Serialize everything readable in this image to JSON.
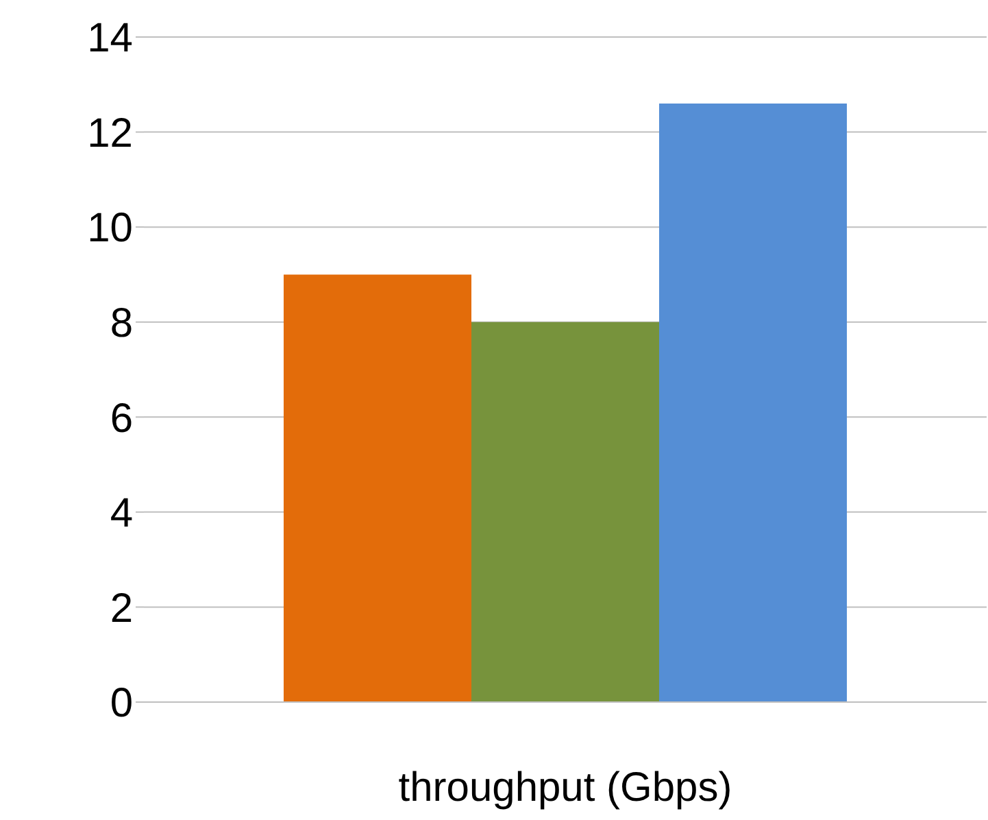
{
  "chart_data": {
    "type": "bar",
    "xlabel": "throughput (Gbps)",
    "categories": [
      null,
      null,
      null
    ],
    "values": [
      9,
      8,
      12.6
    ],
    "colors": [
      "#e36c0a",
      "#77933c",
      "#558ed5"
    ],
    "ylim": [
      0,
      14
    ],
    "yticks": [
      0,
      2,
      4,
      6,
      8,
      10,
      12,
      14
    ],
    "grid": "y",
    "legend": false
  }
}
